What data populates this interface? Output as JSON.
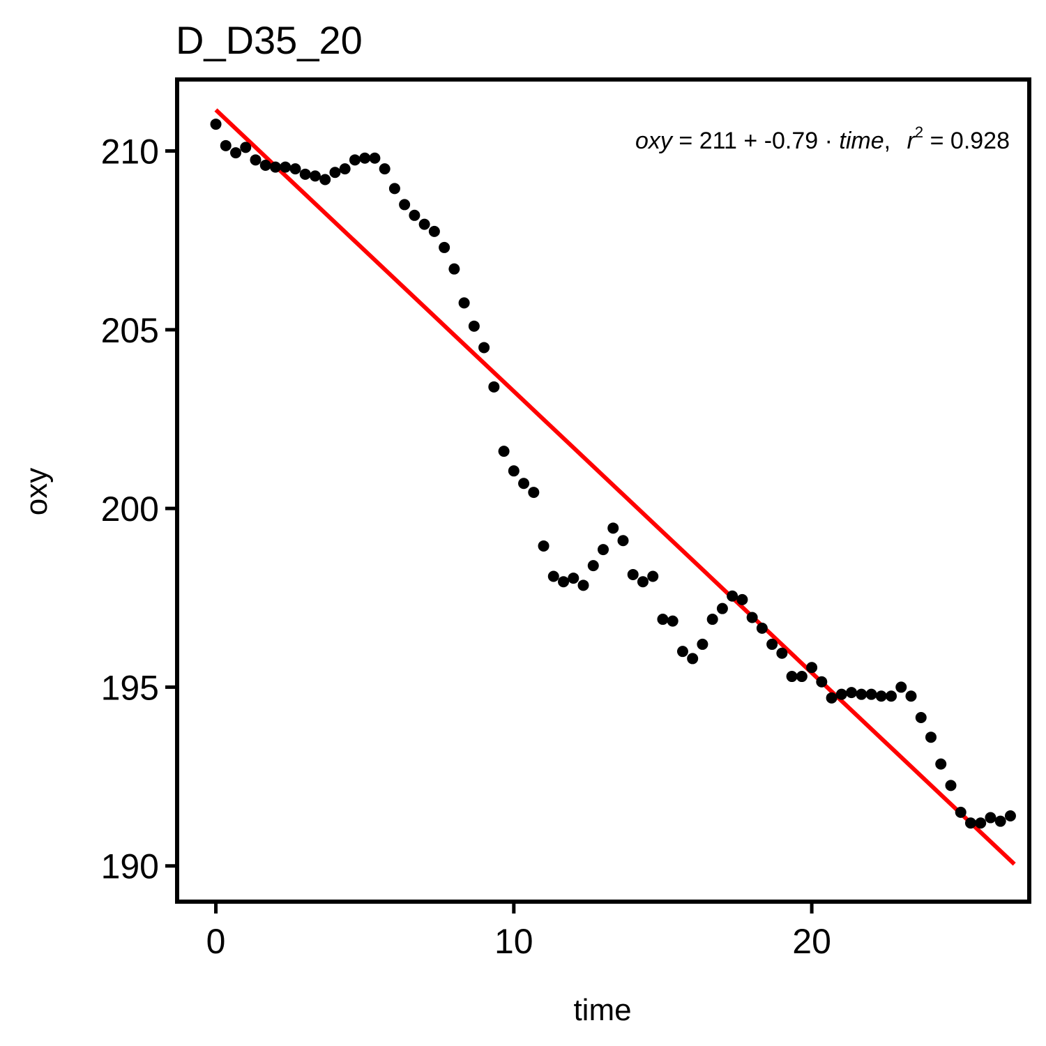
{
  "chart_data": {
    "type": "scatter",
    "title": "D_D35_20",
    "xlabel": "time",
    "ylabel": "oxy",
    "xlim": [
      -1.3,
      27.3
    ],
    "ylim": [
      189.0,
      212.0
    ],
    "x_ticks": [
      0,
      10,
      20
    ],
    "y_ticks": [
      190,
      195,
      200,
      205,
      210
    ],
    "x_tick_labels": [
      "0",
      "10",
      "20"
    ],
    "y_tick_labels": [
      "190",
      "195",
      "200",
      "205",
      "210"
    ],
    "grid": false,
    "annotation": {
      "var_y": "oxy",
      "eq_sign": "=",
      "intercept": "211",
      "plus": "+",
      "slope": "-0.79",
      "dot": "·",
      "var_x": "time",
      "comma": ",",
      "r_label": "r",
      "r_exp": "2",
      "r_eq": "=",
      "r2": "0.928"
    },
    "fit": {
      "x": [
        0,
        26.8
      ],
      "y": [
        211.15,
        190.05
      ],
      "color": "#ff0000"
    },
    "point_color": "#000000",
    "points": {
      "x": [
        0,
        0.333,
        0.667,
        1.0,
        1.333,
        1.667,
        2.0,
        2.333,
        2.667,
        3.0,
        3.333,
        3.667,
        4.0,
        4.333,
        4.667,
        5.0,
        5.333,
        5.667,
        6.0,
        6.333,
        6.667,
        7.0,
        7.333,
        7.667,
        8.0,
        8.333,
        8.667,
        9.0,
        9.333,
        9.667,
        10.0,
        10.333,
        10.667,
        11.0,
        11.333,
        11.667,
        12.0,
        12.333,
        12.667,
        13.0,
        13.333,
        13.667,
        14.0,
        14.333,
        14.667,
        15.0,
        15.333,
        15.667,
        16.0,
        16.333,
        16.667,
        17.0,
        17.333,
        17.667,
        18.0,
        18.333,
        18.667,
        19.0,
        19.333,
        19.667,
        20.0,
        20.333,
        20.667,
        21.0,
        21.333,
        21.667,
        22.0,
        22.333,
        22.667,
        23.0,
        23.333,
        23.667,
        24.0,
        24.333,
        24.667,
        25.0,
        25.333,
        25.667,
        26.0,
        26.333,
        26.667
      ],
      "y": [
        210.75,
        210.15,
        209.95,
        210.1,
        209.75,
        209.6,
        209.55,
        209.55,
        209.5,
        209.35,
        209.3,
        209.2,
        209.4,
        209.5,
        209.75,
        209.8,
        209.8,
        209.5,
        208.95,
        208.5,
        208.2,
        207.95,
        207.75,
        207.3,
        206.7,
        205.75,
        205.1,
        204.5,
        203.4,
        201.6,
        201.05,
        200.7,
        200.45,
        198.95,
        198.1,
        197.95,
        198.05,
        197.85,
        198.4,
        198.85,
        199.45,
        199.1,
        198.15,
        197.95,
        198.1,
        196.9,
        196.85,
        196.0,
        195.8,
        196.2,
        196.9,
        197.2,
        197.55,
        197.45,
        196.95,
        196.65,
        196.2,
        195.95,
        195.3,
        195.3,
        195.55,
        195.15,
        194.7,
        194.8,
        194.85,
        194.8,
        194.8,
        194.75,
        194.75,
        195.0,
        194.75,
        194.15,
        193.6,
        192.85,
        192.25,
        191.5,
        191.2,
        191.2,
        191.35,
        191.25,
        191.4
      ]
    }
  }
}
